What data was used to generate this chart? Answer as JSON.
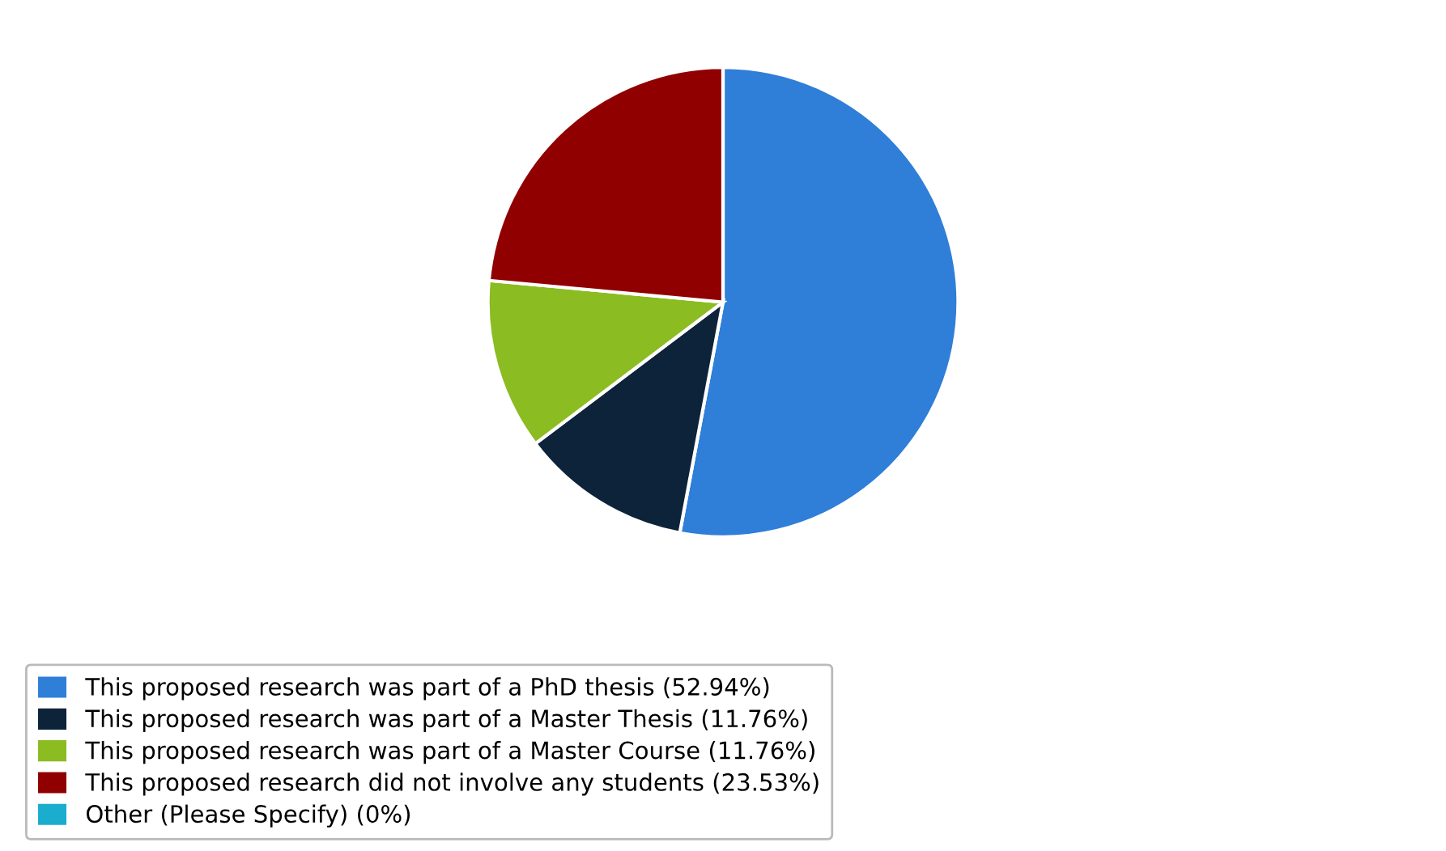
{
  "chart_data": {
    "type": "pie",
    "categories": [
      "This proposed research was part of a PhD thesis",
      "This proposed research was part of a Master Thesis",
      "This proposed research was part of a Master Course",
      "This proposed research did not involve any students",
      "Other (Please Specify)"
    ],
    "values": [
      52.94,
      11.76,
      11.76,
      23.53,
      0
    ],
    "value_labels": [
      "(52.94%)",
      "(11.76%)",
      "(11.76%)",
      "(23.53%)",
      "(0%)"
    ],
    "colors": [
      "#2f7ed8",
      "#0d233a",
      "#8bbc21",
      "#910000",
      "#1aadce"
    ],
    "legend": "bottom"
  }
}
